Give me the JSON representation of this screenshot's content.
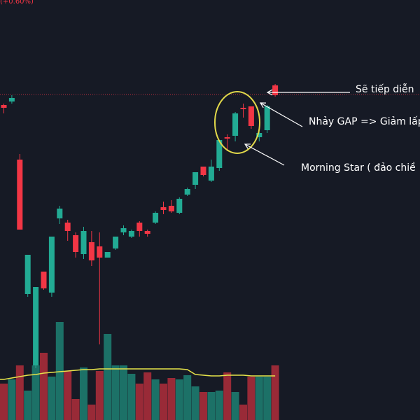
{
  "header": {
    "change_text": "(+0.60%)"
  },
  "colors": {
    "background": "#161a25",
    "up": "#22ab94",
    "down": "#f23645",
    "ma_line": "#e6e34a",
    "ellipse": "#e2d94a",
    "arrow": "#ffffff",
    "price_line": "#f23645"
  },
  "chart_data": {
    "type": "candlestick",
    "title": "",
    "xlabel": "",
    "ylabel": "",
    "price_ylim": [
      0,
      600
    ],
    "volume_ylim": [
      0,
      130
    ],
    "reference_price": 465,
    "candles": [
      {
        "o": 450,
        "c": 446,
        "h": 452,
        "l": 438
      },
      {
        "o": 455,
        "c": 460,
        "h": 464,
        "l": 452
      },
      {
        "o": 372,
        "c": 272,
        "h": 380,
        "l": 272
      },
      {
        "o": 180,
        "c": 236,
        "h": 236,
        "l": 176
      },
      {
        "o": 78,
        "c": 190,
        "h": 190,
        "l": 74
      },
      {
        "o": 212,
        "c": 188,
        "h": 212,
        "l": 186
      },
      {
        "o": 182,
        "c": 262,
        "h": 262,
        "l": 176
      },
      {
        "o": 288,
        "c": 302,
        "h": 306,
        "l": 280
      },
      {
        "o": 282,
        "c": 270,
        "h": 286,
        "l": 256
      },
      {
        "o": 264,
        "c": 240,
        "h": 268,
        "l": 232
      },
      {
        "o": 237,
        "c": 270,
        "h": 276,
        "l": 230
      },
      {
        "o": 254,
        "c": 228,
        "h": 270,
        "l": 220
      },
      {
        "o": 248,
        "c": 232,
        "h": 268,
        "l": 108
      },
      {
        "o": 232,
        "c": 240,
        "h": 240,
        "l": 232
      },
      {
        "o": 245,
        "c": 262,
        "h": 262,
        "l": 243
      },
      {
        "o": 268,
        "c": 274,
        "h": 278,
        "l": 264
      },
      {
        "o": 262,
        "c": 270,
        "h": 272,
        "l": 260
      },
      {
        "o": 282,
        "c": 270,
        "h": 284,
        "l": 262
      },
      {
        "o": 270,
        "c": 266,
        "h": 272,
        "l": 262
      },
      {
        "o": 282,
        "c": 296,
        "h": 298,
        "l": 280
      },
      {
        "o": 304,
        "c": 300,
        "h": 312,
        "l": 294
      },
      {
        "o": 306,
        "c": 298,
        "h": 314,
        "l": 296
      },
      {
        "o": 296,
        "c": 316,
        "h": 318,
        "l": 294
      },
      {
        "o": 322,
        "c": 330,
        "h": 332,
        "l": 320
      },
      {
        "o": 336,
        "c": 354,
        "h": 354,
        "l": 330
      },
      {
        "o": 362,
        "c": 350,
        "h": 362,
        "l": 348
      },
      {
        "o": 342,
        "c": 362,
        "h": 372,
        "l": 340
      },
      {
        "o": 360,
        "c": 400,
        "h": 400,
        "l": 356
      },
      {
        "o": 404,
        "c": 402,
        "h": 408,
        "l": 384
      },
      {
        "o": 406,
        "c": 438,
        "h": 440,
        "l": 398
      },
      {
        "o": 446,
        "c": 444,
        "h": 452,
        "l": 432
      },
      {
        "o": 448,
        "c": 420,
        "h": 448,
        "l": 416
      },
      {
        "o": 404,
        "c": 410,
        "h": 412,
        "l": 398
      },
      {
        "o": 414,
        "c": 448,
        "h": 450,
        "l": 410
      },
      {
        "o": 478,
        "c": 464,
        "h": 480,
        "l": 462
      }
    ],
    "volumes": [
      52,
      58,
      78,
      42,
      78,
      96,
      62,
      140,
      70,
      30,
      75,
      22,
      70,
      123,
      78,
      78,
      66,
      52,
      68,
      58,
      52,
      60,
      58,
      64,
      48,
      40,
      40,
      42,
      68,
      40,
      22,
      62,
      62,
      62,
      78
    ],
    "volume_ma": [
      58,
      60,
      62,
      64,
      65,
      67,
      68,
      69,
      70,
      71,
      72,
      72,
      73,
      73,
      73,
      73,
      73,
      73,
      73,
      73,
      73,
      73,
      73,
      72,
      65,
      64,
      63,
      63,
      64,
      64,
      64,
      63,
      63,
      63,
      63
    ],
    "annotations": [
      {
        "text": "Sẽ tiếp diễn"
      },
      {
        "text": "Nhảy GAP => Giảm lấp"
      },
      {
        "text": "Morning Star ( đảo chiề"
      }
    ]
  }
}
